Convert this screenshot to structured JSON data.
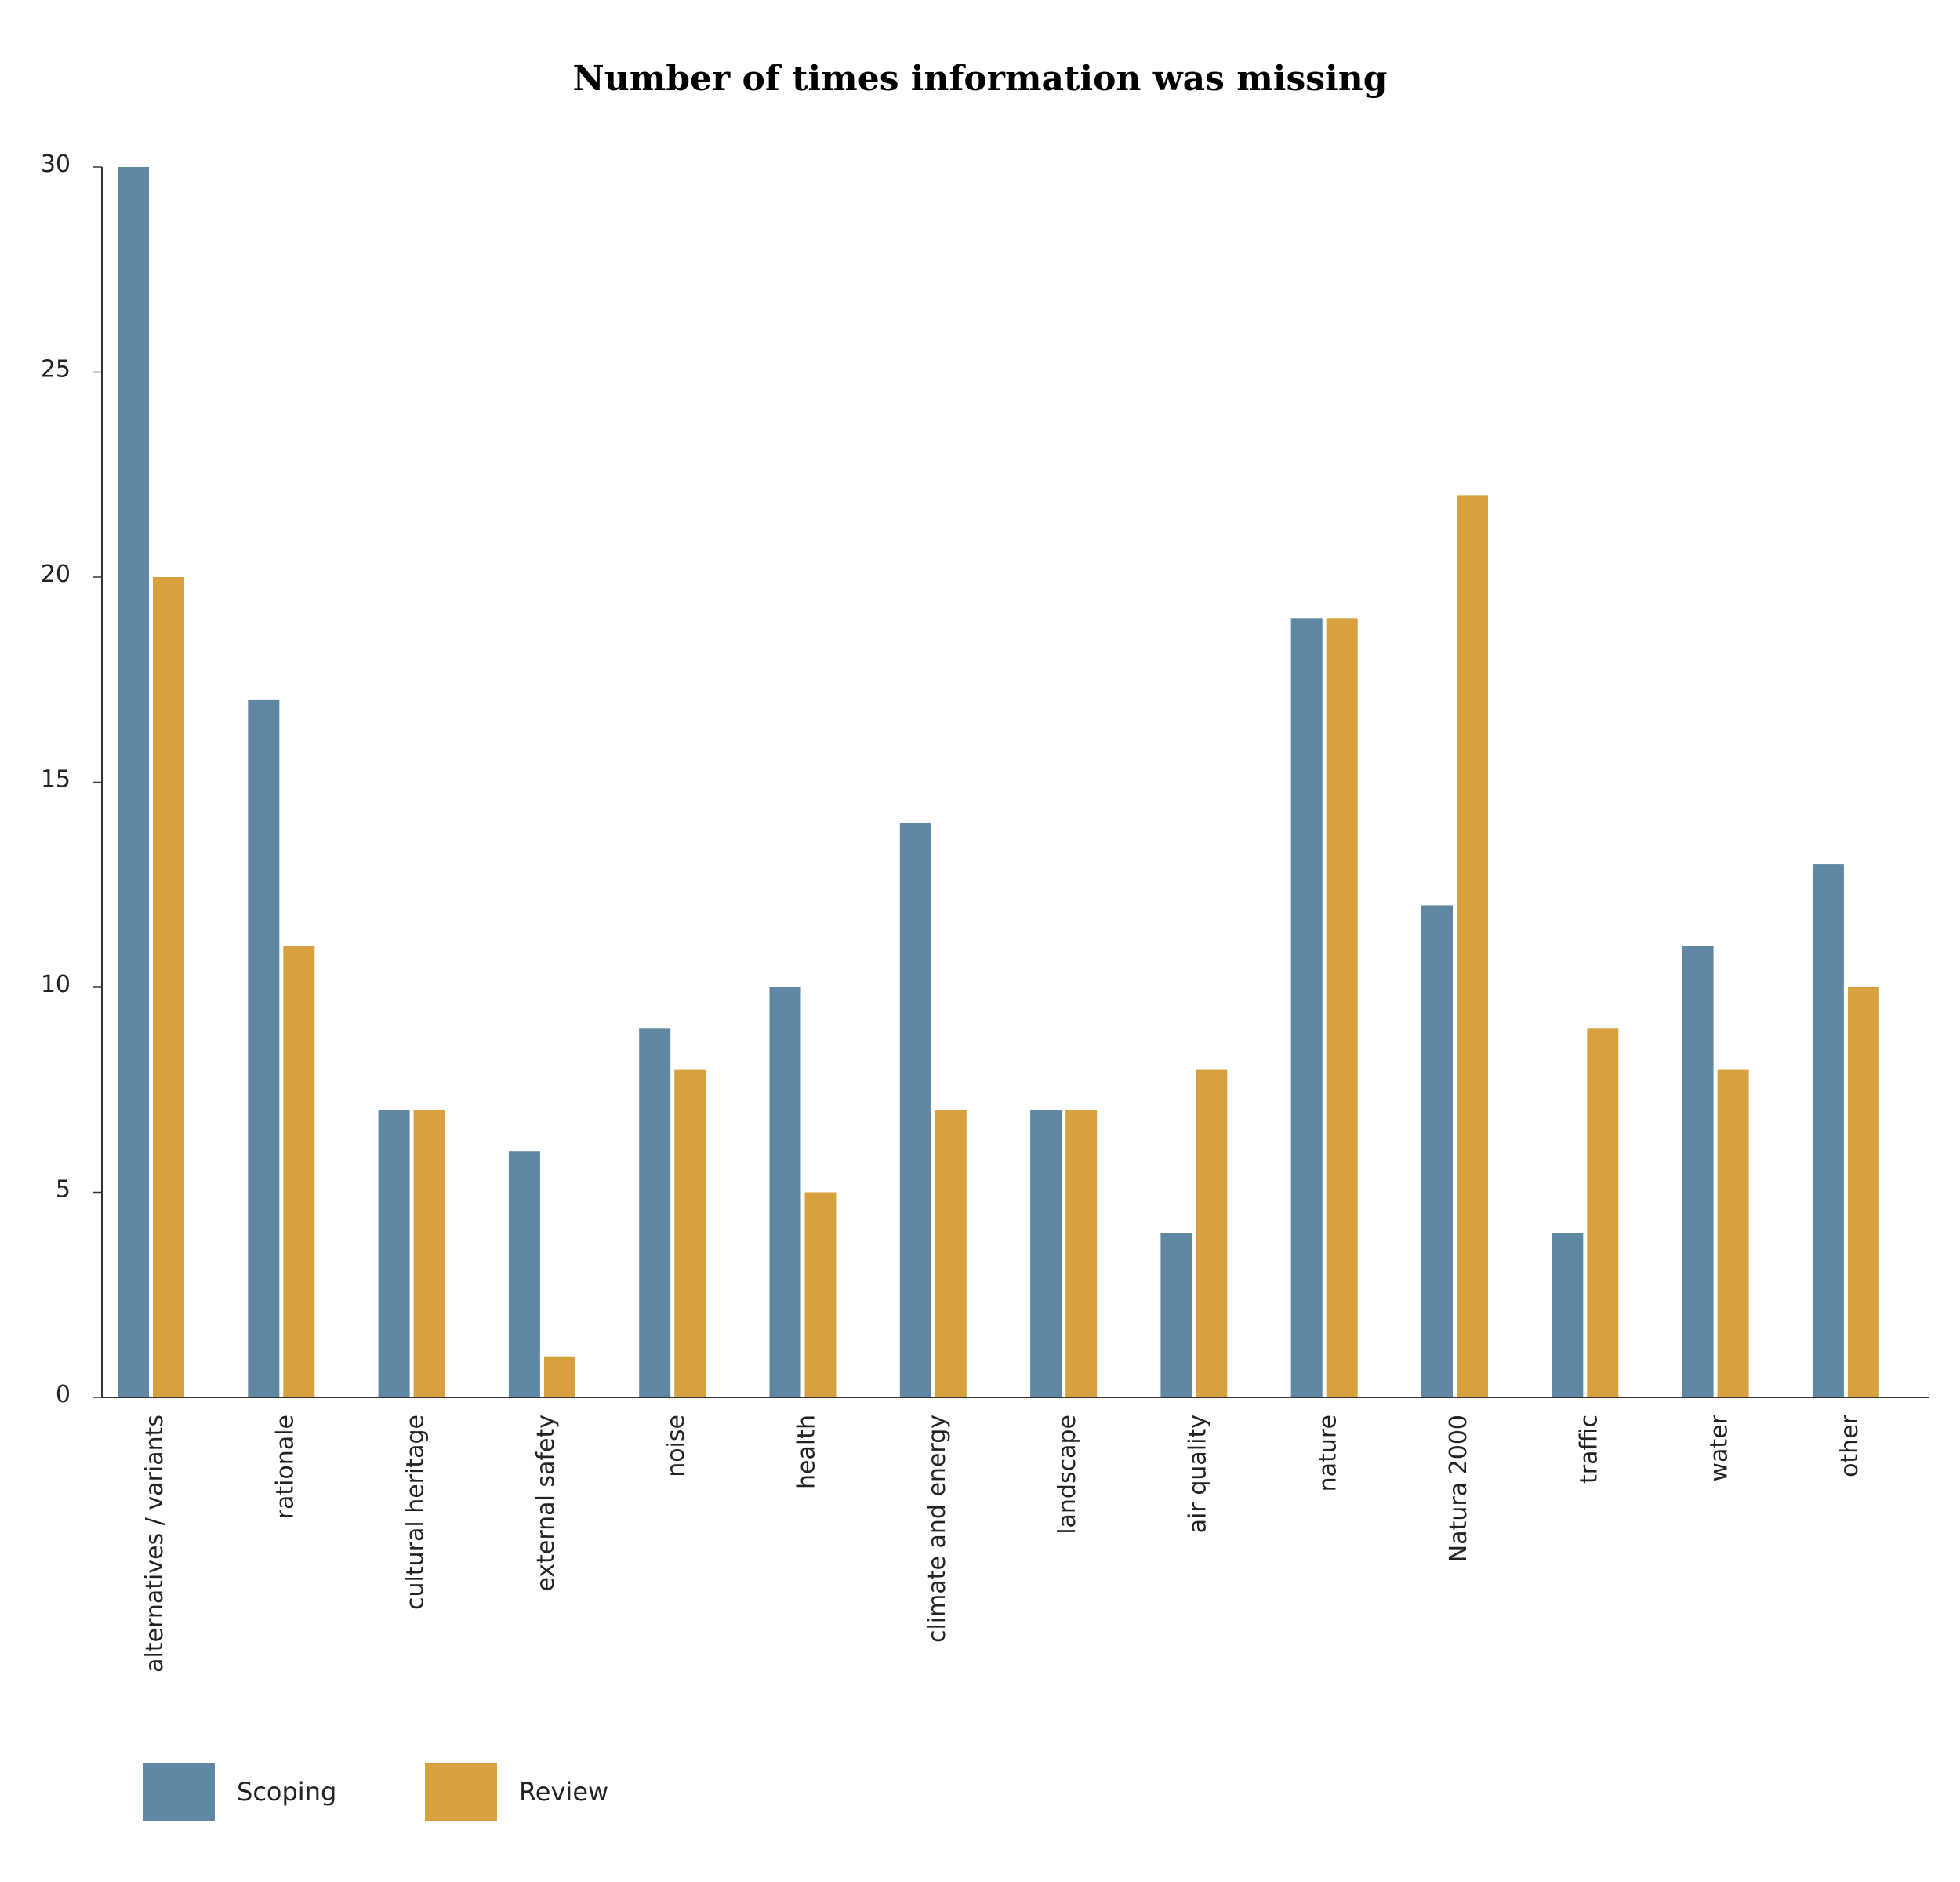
{
  "chart_data": {
    "type": "bar",
    "title": "Number of times information was missing",
    "xlabel": "",
    "ylabel": "",
    "ylim": [
      0,
      30
    ],
    "yticks": [
      0,
      5,
      10,
      15,
      20,
      25,
      30
    ],
    "grid": false,
    "legend_position": "bottom-left",
    "categories": [
      "alternatives / variants",
      "rationale",
      "cultural heritage",
      "external safety",
      "noise",
      "health",
      "climate and energy",
      "landscape",
      "air quality",
      "nature",
      "Natura 2000",
      "traffic",
      "water",
      "other"
    ],
    "series": [
      {
        "name": "Scoping",
        "color": "#5f87a1",
        "values": [
          30,
          17,
          7,
          6,
          9,
          10,
          14,
          7,
          4,
          19,
          12,
          4,
          11,
          13
        ]
      },
      {
        "name": "Review",
        "color": "#d6a13e",
        "values": [
          20,
          11,
          7,
          1,
          8,
          5,
          7,
          7,
          8,
          19,
          22,
          9,
          8,
          10
        ]
      }
    ]
  }
}
